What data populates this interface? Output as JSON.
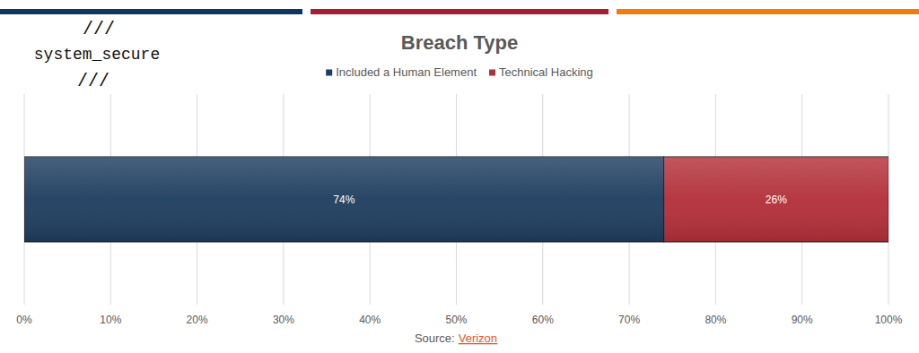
{
  "logo": {
    "lines": [
      "///",
      "system_secure",
      "///"
    ]
  },
  "chart_data": {
    "type": "bar",
    "title": "Breach Type",
    "orientation": "horizontal",
    "stacked": true,
    "data_labels": true,
    "grid": true,
    "legend": "top",
    "categories": [
      null
    ],
    "series": [
      {
        "name": "Included a Human Element",
        "color": "#1f3e60",
        "values": [
          74
        ],
        "value_labels": [
          "74%"
        ]
      },
      {
        "name": "Technical Hacking",
        "color": "#b3303a",
        "values": [
          26
        ],
        "value_labels": [
          "26%"
        ]
      }
    ],
    "xlim": [
      0,
      100
    ],
    "xticks": [
      {
        "value": 0,
        "label": "0%"
      },
      {
        "value": 10,
        "label": "10%"
      },
      {
        "value": 20,
        "label": "20%"
      },
      {
        "value": 30,
        "label": "30%"
      },
      {
        "value": 40,
        "label": "40%"
      },
      {
        "value": 50,
        "label": "50%"
      },
      {
        "value": 60,
        "label": "60%"
      },
      {
        "value": 70,
        "label": "70%"
      },
      {
        "value": 80,
        "label": "80%"
      },
      {
        "value": 90,
        "label": "90%"
      },
      {
        "value": 100,
        "label": "100%"
      }
    ]
  },
  "source": {
    "label": "Source:",
    "link": "Verizon"
  }
}
